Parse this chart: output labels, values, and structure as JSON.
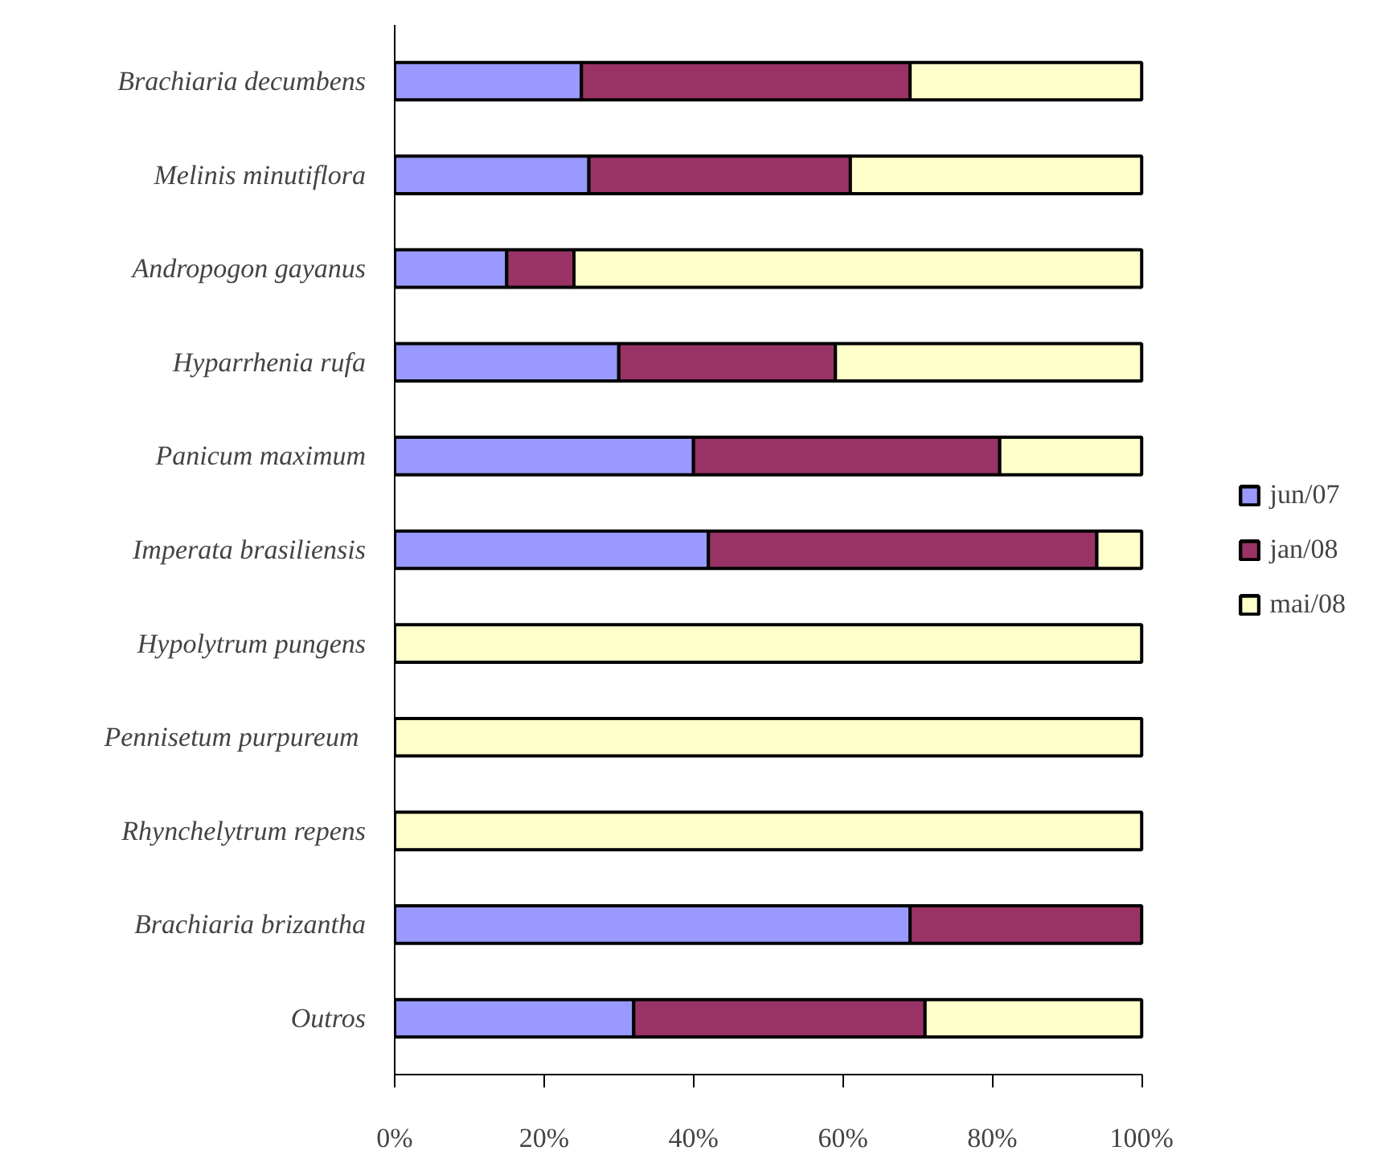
{
  "chart_data": {
    "type": "bar",
    "orientation": "horizontal",
    "stacked": true,
    "categories": [
      "Brachiaria decumbens",
      "Melinis minutiflora",
      "Andropogon gayanus",
      "Hyparrhenia rufa",
      "Panicum maximum",
      "Imperata brasiliensis",
      "Hypolytrum pungens",
      "Pennisetum  purpureum",
      "Rhynchelytrum repens",
      "Brachiaria brizantha",
      "Outros"
    ],
    "series": [
      {
        "name": "jun/07",
        "color": "#9999ff",
        "values": [
          25,
          26,
          15,
          30,
          40,
          42,
          null,
          null,
          null,
          69,
          32
        ]
      },
      {
        "name": "jan/08",
        "color": "#993366",
        "values": [
          44,
          35,
          9,
          29,
          41,
          52,
          null,
          null,
          null,
          31,
          39
        ]
      },
      {
        "name": "mai/08",
        "color": "#ffffcc",
        "values": [
          31,
          39,
          76,
          41,
          19,
          6,
          100,
          100,
          100,
          null,
          29
        ]
      }
    ],
    "xlim": [
      0,
      100
    ],
    "xticks": [
      {
        "value": 0,
        "label": "0%"
      },
      {
        "value": 20,
        "label": "20%"
      },
      {
        "value": 40,
        "label": "40%"
      },
      {
        "value": 60,
        "label": "60%"
      },
      {
        "value": 80,
        "label": "80%"
      },
      {
        "value": 100,
        "label": "100%"
      }
    ],
    "grid": false,
    "legend": "right"
  }
}
